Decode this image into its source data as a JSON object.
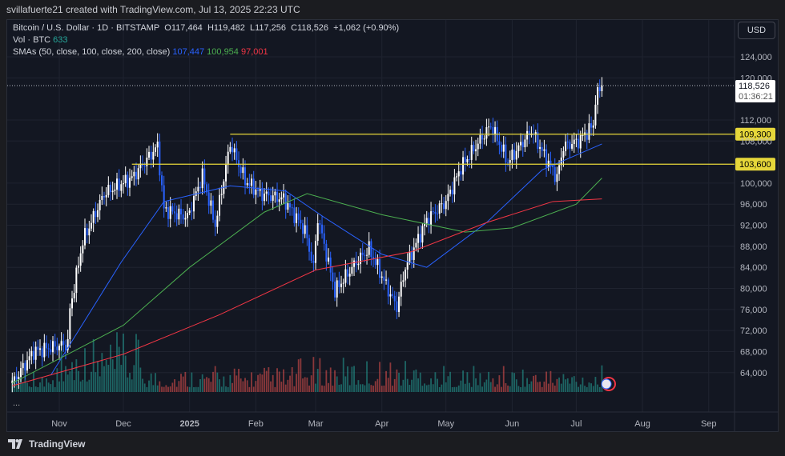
{
  "credit": "svillafuerte21 created with TradingView.com, Jul 13, 2025 22:23 UTC",
  "legend": {
    "symbol": "Bitcoin / U.S. Dollar · 1D · BITSTAMP",
    "open": "O117,464",
    "high": "H119,482",
    "low": "L117,256",
    "close": "C118,526",
    "change": "+1,062 (+0.90%)",
    "vol_label": "Vol · BTC",
    "vol_value": "633",
    "sma_label": "SMAs (50, close, 100, close, 200, close)",
    "sma50": "107,447",
    "sma100": "100,954",
    "sma200": "97,001"
  },
  "currency": "USD",
  "more": "...",
  "footer": {
    "brand": "TradingView"
  },
  "colors": {
    "up": "#26a69a",
    "down": "#ef5350",
    "candle_up": "#ffffff",
    "candle_down": "#2962ff",
    "sma50": "#2962ff",
    "sma100": "#4caf50",
    "sma200": "#f23645",
    "level": "#e6d73a"
  },
  "chart_data": {
    "type": "candlestick",
    "price_ticks": [
      124000,
      120000,
      112000,
      108000,
      100000,
      96000,
      92000,
      88000,
      84000,
      80000,
      76000,
      72000,
      68000,
      64000
    ],
    "time_ticks": [
      {
        "label": "Nov",
        "date": "2024-11-01"
      },
      {
        "label": "Dec",
        "date": "2024-12-01"
      },
      {
        "label": "2025",
        "date": "2025-01-01"
      },
      {
        "label": "Feb",
        "date": "2025-02-01"
      },
      {
        "label": "Mar",
        "date": "2025-03-01"
      },
      {
        "label": "Apr",
        "date": "2025-04-01"
      },
      {
        "label": "May",
        "date": "2025-05-01"
      },
      {
        "label": "Jun",
        "date": "2025-06-01"
      },
      {
        "label": "Jul",
        "date": "2025-07-01"
      },
      {
        "label": "Aug",
        "date": "2025-08-01"
      },
      {
        "label": "Sep",
        "date": "2025-09-01"
      }
    ],
    "close_path": [
      [
        "2024-10-10",
        62000
      ],
      [
        "2024-10-20",
        68000
      ],
      [
        "2024-11-05",
        69500
      ],
      [
        "2024-11-06",
        76000
      ],
      [
        "2024-11-12",
        89000
      ],
      [
        "2024-11-22",
        98000
      ],
      [
        "2024-12-05",
        101000
      ],
      [
        "2024-12-17",
        107000
      ],
      [
        "2024-12-20",
        95000
      ],
      [
        "2024-12-31",
        93500
      ],
      [
        "2025-01-07",
        101500
      ],
      [
        "2025-01-13",
        92000
      ],
      [
        "2025-01-20",
        107500
      ],
      [
        "2025-01-27",
        100500
      ],
      [
        "2025-02-03",
        98000
      ],
      [
        "2025-02-14",
        97000
      ],
      [
        "2025-02-24",
        91000
      ],
      [
        "2025-02-28",
        84000
      ],
      [
        "2025-03-02",
        93500
      ],
      [
        "2025-03-10",
        79500
      ],
      [
        "2025-03-20",
        85000
      ],
      [
        "2025-03-26",
        87500
      ],
      [
        "2025-04-06",
        78000
      ],
      [
        "2025-04-08",
        76500
      ],
      [
        "2025-04-12",
        84000
      ],
      [
        "2025-04-22",
        93000
      ],
      [
        "2025-05-01",
        96500
      ],
      [
        "2025-05-08",
        103000
      ],
      [
        "2025-05-22",
        111000
      ],
      [
        "2025-05-30",
        104000
      ],
      [
        "2025-06-10",
        110000
      ],
      [
        "2025-06-17",
        104500
      ],
      [
        "2025-06-22",
        101000
      ],
      [
        "2025-06-25",
        107000
      ],
      [
        "2025-07-02",
        108000
      ],
      [
        "2025-07-09",
        111000
      ],
      [
        "2025-07-10",
        116000
      ],
      [
        "2025-07-13",
        118526
      ]
    ],
    "sma50": [
      [
        "2024-10-28",
        63500
      ],
      [
        "2024-11-30",
        85000
      ],
      [
        "2024-12-20",
        96500
      ],
      [
        "2025-01-20",
        99500
      ],
      [
        "2025-02-15",
        98500
      ],
      [
        "2025-03-05",
        93500
      ],
      [
        "2025-04-01",
        86500
      ],
      [
        "2025-04-22",
        84000
      ],
      [
        "2025-05-20",
        92500
      ],
      [
        "2025-06-15",
        102500
      ],
      [
        "2025-07-13",
        107447
      ]
    ],
    "sma100": [
      [
        "2024-10-10",
        62000
      ],
      [
        "2024-12-01",
        73000
      ],
      [
        "2025-01-01",
        84000
      ],
      [
        "2025-02-05",
        94500
      ],
      [
        "2025-02-25",
        98000
      ],
      [
        "2025-04-01",
        94000
      ],
      [
        "2025-05-10",
        90700
      ],
      [
        "2025-06-01",
        91500
      ],
      [
        "2025-07-01",
        96000
      ],
      [
        "2025-07-13",
        100954
      ]
    ],
    "sma200": [
      [
        "2024-10-10",
        61500
      ],
      [
        "2024-12-01",
        67500
      ],
      [
        "2025-01-15",
        75000
      ],
      [
        "2025-03-01",
        83500
      ],
      [
        "2025-04-15",
        87000
      ],
      [
        "2025-05-20",
        92500
      ],
      [
        "2025-06-20",
        96500
      ],
      [
        "2025-07-13",
        97001
      ]
    ],
    "levels": [
      {
        "price": 109300,
        "label": "109,300",
        "from": "2025-01-20"
      },
      {
        "price": 103600,
        "label": "103,600",
        "from": "2024-12-05"
      }
    ],
    "last_price": {
      "label": "118,526",
      "countdown": "01:36:21",
      "price": 118526
    }
  }
}
